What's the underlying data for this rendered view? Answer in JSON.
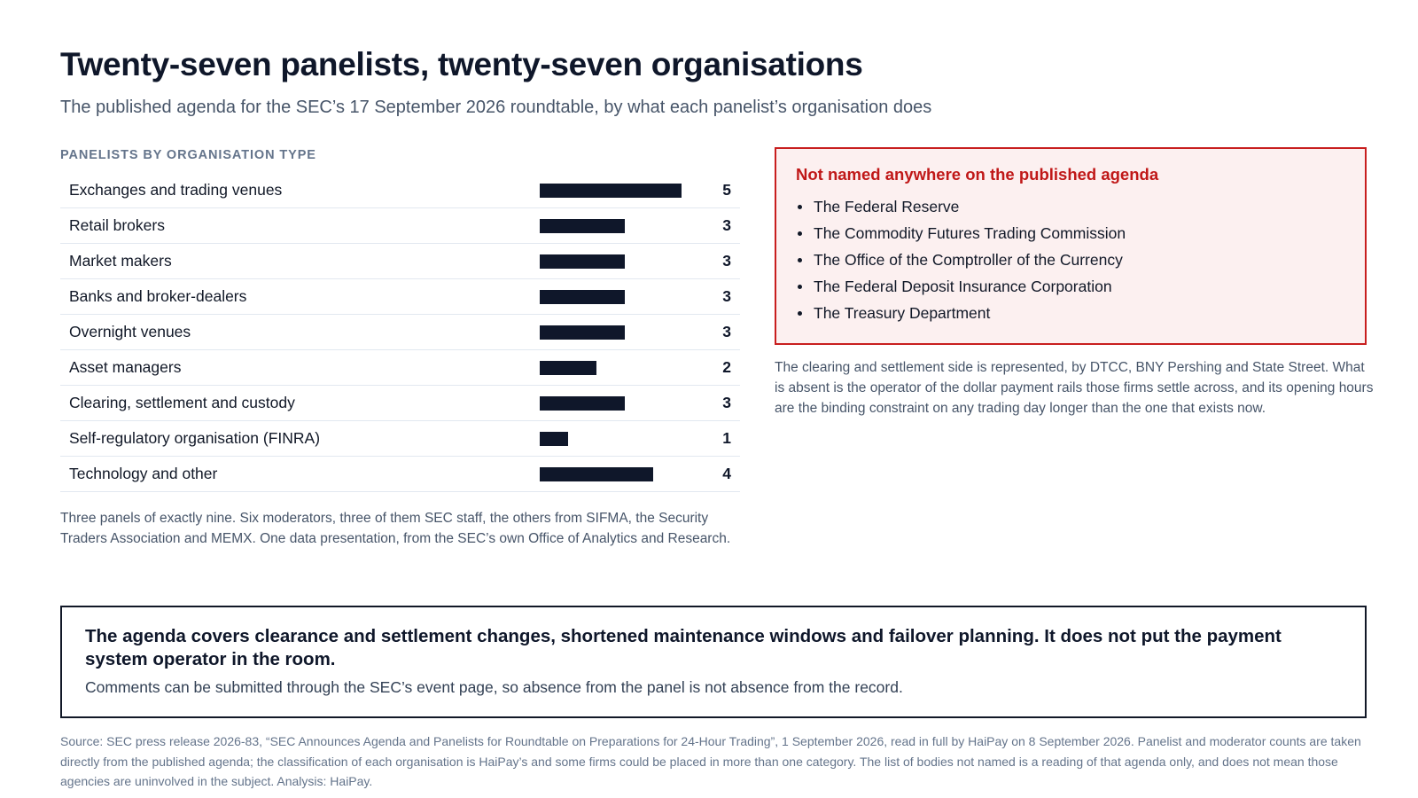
{
  "title": "Twenty-seven panelists, twenty-seven organisations",
  "subtitle": "The published agenda for the SEC’s 17 September 2026 roundtable, by what each panelist’s organisation does",
  "chart_data": {
    "type": "bar",
    "orientation": "horizontal",
    "title": "PANELISTS BY ORGANISATION TYPE",
    "categories": [
      "Exchanges and trading venues",
      "Retail brokers",
      "Market makers",
      "Banks and broker-dealers",
      "Overnight venues",
      "Asset managers",
      "Clearing, settlement and custody",
      "Self-regulatory organisation (FINRA)",
      "Technology and other"
    ],
    "values": [
      5,
      3,
      3,
      3,
      3,
      2,
      3,
      1,
      4
    ],
    "value_max": 5,
    "bar_color": "#0f172a",
    "grid": false,
    "legend": "none"
  },
  "chart_note": "Three panels of exactly nine. Six moderators, three of them SEC staff, the others from SIFMA, the Security Traders Association and MEMX. One data presentation, from the SEC’s own Office of Analytics and Research.",
  "absent": {
    "title": "Not named anywhere on the published agenda",
    "items": [
      "The Federal Reserve",
      "The Commodity Futures Trading Commission",
      "The Office of the Comptroller of the Currency",
      "The Federal Deposit Insurance Corporation",
      "The Treasury Department"
    ],
    "border_color": "#c81e1e",
    "background_color": "#fcf0f0",
    "note": "The clearing and settlement side is represented, by DTCC, BNY Pershing and State Street. What is absent is the operator of the dollar payment rails those firms settle across, and its opening hours are the binding constraint on any trading day longer than the one that exists now."
  },
  "callout": {
    "headline": "The agenda covers clearance and settlement changes, shortened maintenance windows and failover planning. It does not put the payment system operator in the room.",
    "body": "Comments can be submitted through the SEC’s event page, so absence from the panel is not absence from the record."
  },
  "source": "Source: SEC press release 2026-83, “SEC Announces Agenda and Panelists for Roundtable on Preparations for 24-Hour Trading”, 1 September 2026, read in full by HaiPay on 8 September 2026. Panelist and moderator counts are taken directly from the published agenda; the classification of each organisation is HaiPay’s and some firms could be placed in more than one category. The list of bodies not named is a reading of that agenda only, and does not mean those agencies are uninvolved in the subject. Analysis: HaiPay."
}
